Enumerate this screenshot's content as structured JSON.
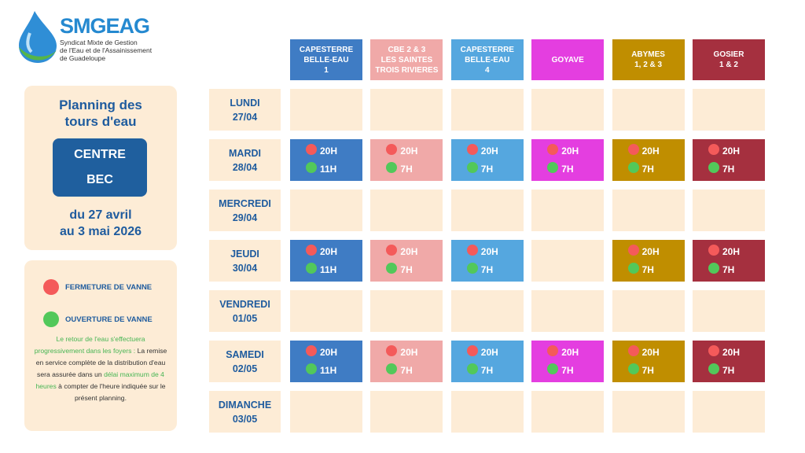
{
  "logo": {
    "name": "SMGEAG",
    "subtitle_lines": [
      "Syndicat Mixte de Gestion",
      "de l'Eau et de l'Assainissement",
      "de Guadeloupe"
    ]
  },
  "panel": {
    "title_lines": [
      "Planning des",
      "tours d'eau"
    ],
    "zone_lines": [
      "CENTRE",
      "BEC"
    ],
    "period_lines": [
      "du 27 avril",
      "au 3 mai 2026"
    ]
  },
  "legend": {
    "close": "FERMETURE DE VANNE",
    "open": "OUVERTURE DE VANNE"
  },
  "note": {
    "intro": "Le retour de l'eau s'effectuera progressivement dans les foyers :",
    "body_start": "La remise en service complète de la distribution d'eau sera assurée dans un",
    "highlight": "délai maximum de 4 heures",
    "body_end": "à compter de l'heure indiquée sur le présent planning."
  },
  "columns": [
    {
      "lines": [
        "CAPESTERRE",
        "BELLE-EAU",
        "1"
      ],
      "color": "#3f7cc4"
    },
    {
      "lines": [
        "CBE 2 & 3",
        "LES SAINTES",
        "TROIS RIVIERES"
      ],
      "color": "#f0a9a8"
    },
    {
      "lines": [
        "CAPESTERRE",
        "BELLE-EAU",
        "4"
      ],
      "color": "#55a7df"
    },
    {
      "lines": [
        "GOYAVE"
      ],
      "color": "#e43ee0"
    },
    {
      "lines": [
        "ABYMES",
        "1, 2 & 3"
      ],
      "color": "#c08e00"
    },
    {
      "lines": [
        "GOSIER",
        "1 & 2"
      ],
      "color": "#a5303f"
    }
  ],
  "rows": [
    {
      "day": "LUNDI",
      "date": "27/04",
      "cells": [
        null,
        null,
        null,
        null,
        null,
        null
      ]
    },
    {
      "day": "MARDI",
      "date": "28/04",
      "cells": [
        {
          "close": "20H",
          "open": "11H"
        },
        {
          "close": "20H",
          "open": "7H"
        },
        {
          "close": "20H",
          "open": "7H"
        },
        {
          "close": "20H",
          "open": "7H"
        },
        {
          "close": "20H",
          "open": "7H"
        },
        {
          "close": "20H",
          "open": "7H"
        }
      ]
    },
    {
      "day": "MERCREDI",
      "date": "29/04",
      "cells": [
        null,
        null,
        null,
        null,
        null,
        null
      ]
    },
    {
      "day": "JEUDI",
      "date": "30/04",
      "cells": [
        {
          "close": "20H",
          "open": "11H"
        },
        {
          "close": "20H",
          "open": "7H"
        },
        {
          "close": "20H",
          "open": "7H"
        },
        null,
        {
          "close": "20H",
          "open": "7H"
        },
        {
          "close": "20H",
          "open": "7H"
        }
      ]
    },
    {
      "day": "VENDREDI",
      "date": "01/05",
      "cells": [
        null,
        null,
        null,
        null,
        null,
        null
      ]
    },
    {
      "day": "SAMEDI",
      "date": "02/05",
      "cells": [
        {
          "close": "20H",
          "open": "11H"
        },
        {
          "close": "20H",
          "open": "7H"
        },
        {
          "close": "20H",
          "open": "7H"
        },
        {
          "close": "20H",
          "open": "7H"
        },
        {
          "close": "20H",
          "open": "7H"
        },
        {
          "close": "20H",
          "open": "7H"
        }
      ]
    },
    {
      "day": "DIMANCHE",
      "date": "03/05",
      "cells": [
        null,
        null,
        null,
        null,
        null,
        null
      ]
    }
  ]
}
